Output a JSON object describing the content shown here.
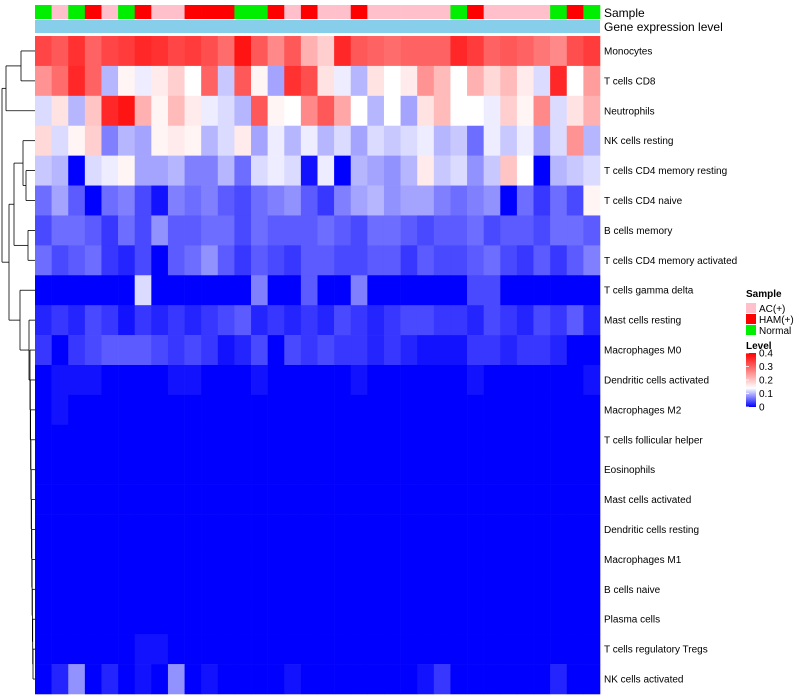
{
  "chart_data": {
    "type": "heatmap",
    "title": "",
    "annotations": {
      "sample_label": "Sample",
      "expression_label": "Gene expression level"
    },
    "rows": [
      "Monocytes",
      "T cells CD8",
      "Neutrophils",
      "NK cells resting",
      "T cells CD4 memory resting",
      "T cells CD4 naive",
      "B cells memory",
      "T cells CD4 memory activated",
      "T cells gamma delta",
      "Mast cells resting",
      "Macrophages M0",
      "Dendritic cells activated",
      "Macrophages M2",
      "T cells follicular helper",
      "Eosinophils",
      "Mast cells activated",
      "Dendritic cells resting",
      "Macrophages M1",
      "B cells naive",
      "Plasma cells",
      "T cells regulatory  Tregs",
      "NK cells activated"
    ],
    "sample_groups": [
      "Normal",
      "AC(+)",
      "Normal",
      "HAM(+)",
      "AC(+)",
      "Normal",
      "HAM(+)",
      "AC(+)",
      "AC(+)",
      "HAM(+)",
      "HAM(+)",
      "HAM(+)",
      "Normal",
      "Normal",
      "HAM(+)",
      "AC(+)",
      "HAM(+)",
      "AC(+)",
      "AC(+)",
      "HAM(+)",
      "AC(+)",
      "AC(+)",
      "AC(+)",
      "AC(+)",
      "AC(+)",
      "Normal",
      "HAM(+)",
      "AC(+)",
      "AC(+)",
      "AC(+)",
      "AC(+)",
      "Normal",
      "HAM(+)",
      "Normal"
    ],
    "values": [
      [
        0.33,
        0.31,
        0.35,
        0.3,
        0.33,
        0.34,
        0.36,
        0.35,
        0.33,
        0.34,
        0.32,
        0.29,
        0.38,
        0.31,
        0.26,
        0.31,
        0.22,
        0.19,
        0.36,
        0.31,
        0.3,
        0.29,
        0.3,
        0.3,
        0.3,
        0.36,
        0.34,
        0.3,
        0.31,
        0.3,
        0.28,
        0.26,
        0.32,
        0.34
      ],
      [
        0.25,
        0.29,
        0.36,
        0.3,
        0.1,
        0.15,
        0.13,
        0.16,
        0.19,
        0.14,
        0.3,
        0.11,
        0.31,
        0.15,
        0.09,
        0.35,
        0.32,
        0.17,
        0.13,
        0.1,
        0.17,
        0.14,
        0.16,
        0.25,
        0.21,
        0.14,
        0.22,
        0.18,
        0.21,
        0.16,
        0.12,
        0.36,
        0.14,
        0.24
      ],
      [
        0.12,
        0.17,
        0.1,
        0.2,
        0.36,
        0.38,
        0.22,
        0.15,
        0.21,
        0.16,
        0.13,
        0.12,
        0.1,
        0.31,
        0.15,
        0.14,
        0.26,
        0.31,
        0.23,
        0.14,
        0.1,
        0.14,
        0.09,
        0.17,
        0.21,
        0.14,
        0.14,
        0.13,
        0.19,
        0.15,
        0.26,
        0.12,
        0.17,
        0.22
      ],
      [
        0.18,
        0.12,
        0.15,
        0.19,
        0.07,
        0.1,
        0.09,
        0.15,
        0.16,
        0.15,
        0.1,
        0.12,
        0.16,
        0.09,
        0.13,
        0.1,
        0.13,
        0.1,
        0.12,
        0.09,
        0.12,
        0.11,
        0.12,
        0.13,
        0.1,
        0.11,
        0.06,
        0.13,
        0.11,
        0.13,
        0.09,
        0.12,
        0.25,
        0.1
      ],
      [
        0.11,
        0.1,
        0.0,
        0.12,
        0.13,
        0.15,
        0.09,
        0.09,
        0.1,
        0.07,
        0.07,
        0.1,
        0.06,
        0.12,
        0.13,
        0.12,
        0.01,
        0.13,
        0.0,
        0.1,
        0.09,
        0.08,
        0.1,
        0.16,
        0.11,
        0.12,
        0.08,
        0.11,
        0.2,
        0.14,
        0.0,
        0.1,
        0.11,
        0.12
      ],
      [
        0.06,
        0.09,
        0.05,
        0.0,
        0.06,
        0.07,
        0.04,
        0.01,
        0.07,
        0.06,
        0.07,
        0.05,
        0.04,
        0.06,
        0.07,
        0.08,
        0.05,
        0.03,
        0.07,
        0.09,
        0.1,
        0.08,
        0.09,
        0.09,
        0.07,
        0.06,
        0.07,
        0.08,
        0.0,
        0.06,
        0.03,
        0.06,
        0.04,
        0.15
      ],
      [
        0.04,
        0.06,
        0.06,
        0.05,
        0.03,
        0.06,
        0.04,
        0.08,
        0.05,
        0.05,
        0.06,
        0.06,
        0.04,
        0.06,
        0.05,
        0.05,
        0.05,
        0.06,
        0.05,
        0.04,
        0.06,
        0.06,
        0.05,
        0.04,
        0.05,
        0.05,
        0.06,
        0.04,
        0.05,
        0.05,
        0.04,
        0.06,
        0.06,
        0.05
      ],
      [
        0.06,
        0.04,
        0.05,
        0.06,
        0.03,
        0.02,
        0.04,
        0.0,
        0.05,
        0.06,
        0.08,
        0.05,
        0.03,
        0.05,
        0.04,
        0.03,
        0.05,
        0.05,
        0.04,
        0.04,
        0.05,
        0.05,
        0.03,
        0.05,
        0.04,
        0.04,
        0.05,
        0.06,
        0.04,
        0.03,
        0.05,
        0.03,
        0.05,
        0.07
      ],
      [
        0.0,
        0.0,
        0.0,
        0.0,
        0.0,
        0.0,
        0.12,
        0.0,
        0.0,
        0.0,
        0.0,
        0.0,
        0.0,
        0.07,
        0.0,
        0.0,
        0.05,
        0.0,
        0.0,
        0.07,
        0.0,
        0.0,
        0.0,
        0.0,
        0.0,
        0.0,
        0.04,
        0.04,
        0.0,
        0.0,
        0.0,
        0.0,
        0.0,
        0.0
      ],
      [
        0.02,
        0.03,
        0.02,
        0.04,
        0.03,
        0.01,
        0.03,
        0.02,
        0.03,
        0.02,
        0.03,
        0.04,
        0.05,
        0.02,
        0.03,
        0.02,
        0.03,
        0.02,
        0.04,
        0.03,
        0.02,
        0.03,
        0.04,
        0.04,
        0.03,
        0.03,
        0.02,
        0.04,
        0.03,
        0.02,
        0.04,
        0.03,
        0.05,
        0.02
      ],
      [
        0.03,
        0.0,
        0.03,
        0.04,
        0.05,
        0.05,
        0.05,
        0.04,
        0.03,
        0.04,
        0.03,
        0.01,
        0.02,
        0.04,
        0.0,
        0.04,
        0.03,
        0.04,
        0.03,
        0.03,
        0.02,
        0.03,
        0.02,
        0.01,
        0.01,
        0.01,
        0.03,
        0.03,
        0.02,
        0.03,
        0.03,
        0.02,
        0.0,
        0.0
      ],
      [
        0.0,
        0.01,
        0.01,
        0.01,
        0.0,
        0.0,
        0.0,
        0.0,
        0.01,
        0.01,
        0.0,
        0.0,
        0.0,
        0.01,
        0.0,
        0.0,
        0.0,
        0.0,
        0.0,
        0.01,
        0.0,
        0.0,
        0.0,
        0.0,
        0.0,
        0.0,
        0.01,
        0.0,
        0.0,
        0.0,
        0.0,
        0.0,
        0.0,
        0.01
      ],
      [
        0.0,
        0.01,
        0.0,
        0.0,
        0.0,
        0.0,
        0.0,
        0.0,
        0.0,
        0.0,
        0.0,
        0.0,
        0.0,
        0.0,
        0.0,
        0.0,
        0.0,
        0.0,
        0.0,
        0.0,
        0.0,
        0.0,
        0.0,
        0.0,
        0.0,
        0.0,
        0.0,
        0.0,
        0.0,
        0.0,
        0.0,
        0.0,
        0.0,
        0.0
      ],
      [
        0.0,
        0.0,
        0.0,
        0.0,
        0.0,
        0.0,
        0.0,
        0.0,
        0.0,
        0.0,
        0.0,
        0.0,
        0.0,
        0.0,
        0.0,
        0.0,
        0.0,
        0.0,
        0.0,
        0.0,
        0.0,
        0.0,
        0.0,
        0.0,
        0.0,
        0.0,
        0.0,
        0.0,
        0.0,
        0.0,
        0.0,
        0.0,
        0.0,
        0.0
      ],
      [
        0.0,
        0.0,
        0.0,
        0.0,
        0.0,
        0.0,
        0.0,
        0.0,
        0.0,
        0.0,
        0.0,
        0.0,
        0.0,
        0.0,
        0.0,
        0.0,
        0.0,
        0.0,
        0.0,
        0.0,
        0.0,
        0.0,
        0.0,
        0.0,
        0.0,
        0.0,
        0.0,
        0.0,
        0.0,
        0.0,
        0.0,
        0.0,
        0.0,
        0.0
      ],
      [
        0.0,
        0.0,
        0.0,
        0.0,
        0.0,
        0.0,
        0.0,
        0.0,
        0.0,
        0.0,
        0.0,
        0.0,
        0.0,
        0.0,
        0.0,
        0.0,
        0.0,
        0.0,
        0.0,
        0.0,
        0.0,
        0.0,
        0.0,
        0.0,
        0.0,
        0.0,
        0.0,
        0.0,
        0.0,
        0.0,
        0.0,
        0.0,
        0.0,
        0.0
      ],
      [
        0.0,
        0.0,
        0.0,
        0.0,
        0.0,
        0.0,
        0.0,
        0.0,
        0.0,
        0.0,
        0.0,
        0.0,
        0.0,
        0.0,
        0.0,
        0.0,
        0.0,
        0.0,
        0.0,
        0.0,
        0.0,
        0.0,
        0.0,
        0.0,
        0.0,
        0.0,
        0.0,
        0.0,
        0.0,
        0.0,
        0.0,
        0.0,
        0.0,
        0.0
      ],
      [
        0.0,
        0.0,
        0.0,
        0.0,
        0.0,
        0.0,
        0.0,
        0.0,
        0.0,
        0.0,
        0.0,
        0.0,
        0.0,
        0.0,
        0.0,
        0.0,
        0.0,
        0.0,
        0.0,
        0.0,
        0.0,
        0.0,
        0.0,
        0.0,
        0.0,
        0.0,
        0.0,
        0.0,
        0.0,
        0.0,
        0.0,
        0.0,
        0.0,
        0.0
      ],
      [
        0.0,
        0.0,
        0.0,
        0.0,
        0.0,
        0.0,
        0.0,
        0.0,
        0.0,
        0.0,
        0.0,
        0.0,
        0.0,
        0.0,
        0.0,
        0.0,
        0.0,
        0.0,
        0.0,
        0.0,
        0.0,
        0.0,
        0.0,
        0.0,
        0.0,
        0.0,
        0.0,
        0.0,
        0.0,
        0.0,
        0.0,
        0.0,
        0.0,
        0.0
      ],
      [
        0.0,
        0.0,
        0.0,
        0.0,
        0.0,
        0.0,
        0.0,
        0.0,
        0.0,
        0.0,
        0.0,
        0.0,
        0.0,
        0.0,
        0.0,
        0.0,
        0.0,
        0.0,
        0.0,
        0.0,
        0.0,
        0.0,
        0.0,
        0.0,
        0.0,
        0.0,
        0.0,
        0.0,
        0.0,
        0.0,
        0.0,
        0.0,
        0.0,
        0.0
      ],
      [
        0.0,
        0.0,
        0.0,
        0.0,
        0.0,
        0.0,
        0.01,
        0.01,
        0.0,
        0.0,
        0.0,
        0.0,
        0.0,
        0.0,
        0.0,
        0.0,
        0.0,
        0.0,
        0.0,
        0.0,
        0.0,
        0.0,
        0.0,
        0.0,
        0.0,
        0.0,
        0.0,
        0.0,
        0.0,
        0.0,
        0.0,
        0.0,
        0.0,
        0.0
      ],
      [
        0.0,
        0.02,
        0.08,
        0.0,
        0.02,
        0.0,
        0.01,
        0.0,
        0.08,
        0.0,
        0.01,
        0.0,
        0.0,
        0.0,
        0.0,
        0.01,
        0.0,
        0.0,
        0.0,
        0.0,
        0.0,
        0.0,
        0.0,
        0.01,
        0.03,
        0.0,
        0.0,
        0.0,
        0.0,
        0.0,
        0.0,
        0.02,
        0.0,
        0.0
      ]
    ],
    "legend": {
      "sample": {
        "title": "Sample",
        "entries": [
          {
            "label": "AC(+)",
            "color": "#ffc0cb"
          },
          {
            "label": "HAM(+)",
            "color": "#ff0000"
          },
          {
            "label": "Normal",
            "color": "#00ee00"
          }
        ]
      },
      "level": {
        "title": "Level",
        "ticks": [
          "0.4",
          "0.3",
          "0.2",
          "0.1",
          "0"
        ],
        "tick_values": [
          0.4,
          0.3,
          0.2,
          0.1,
          0.0
        ],
        "range": [
          0,
          0.4
        ]
      },
      "placement": "right"
    },
    "colors": {
      "low": "#0000ff",
      "mid": "#ffffff",
      "high": "#ff0000",
      "expression_bar": "#87ceeb",
      "normal": "#00ee00",
      "ac": "#ffc0cb",
      "ham": "#ff0000"
    },
    "scale_mid": 0.14,
    "scale_max": 0.4
  }
}
